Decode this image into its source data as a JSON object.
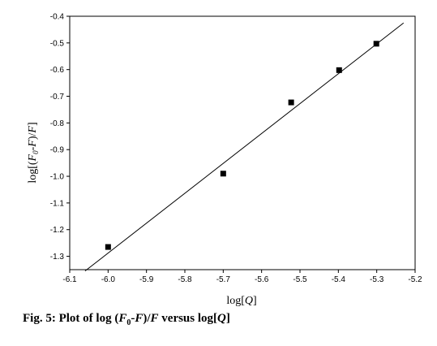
{
  "chart_data": {
    "type": "scatter",
    "xlim": [
      -6.1,
      -5.2
    ],
    "ylim": [
      -1.35,
      -0.4
    ],
    "x_ticks": [
      -6.1,
      -6.0,
      -5.9,
      -5.8,
      -5.7,
      -5.6,
      -5.5,
      -5.4,
      -5.3,
      -5.2
    ],
    "x_tick_labels": [
      "-6.1",
      "-6.0",
      "-5.9",
      "-5.8",
      "-5.7",
      "-5.6",
      "-5.5",
      "-5.4",
      "-5.3",
      "-5.2"
    ],
    "y_ticks": [
      -1.3,
      -1.2,
      -1.1,
      -1.0,
      -0.9,
      -0.8,
      -0.7,
      -0.6,
      -0.5,
      -0.4
    ],
    "y_tick_labels": [
      "-1.3",
      "-1.2",
      "-1.1",
      "-1.0",
      "-0.9",
      "-0.8",
      "-0.7",
      "-0.6",
      "-0.5",
      "-0.4"
    ],
    "series": [
      {
        "marker": "square",
        "color": "#000000",
        "x": [
          -6.0,
          -5.7,
          -5.523,
          -5.398,
          -5.301
        ],
        "y": [
          -1.265,
          -0.99,
          -0.723,
          -0.602,
          -0.503
        ]
      }
    ],
    "fit_line": {
      "x": [
        -6.06,
        -5.23
      ],
      "y": [
        -1.355,
        -0.425
      ],
      "color": "#000000"
    },
    "grid": false,
    "legend": "none"
  },
  "labels": {
    "xlabel_pre": "log[",
    "xlabel_var": "Q",
    "xlabel_post": "]",
    "ylabel_pre": "log[(",
    "ylabel_f0": "F",
    "ylabel_sub": "0",
    "ylabel_mid": "-",
    "ylabel_f": "F",
    "ylabel_slash": ")/",
    "ylabel_f2": "F",
    "ylabel_post": "]"
  },
  "caption": {
    "prefix": "Fig. 5: Plot of log (",
    "f0": "F",
    "sub": "0",
    "dash": "-",
    "f": "F",
    "slash": ")/",
    "f2": "F",
    "middle": " versus log[",
    "q": "Q",
    "end": "]"
  }
}
